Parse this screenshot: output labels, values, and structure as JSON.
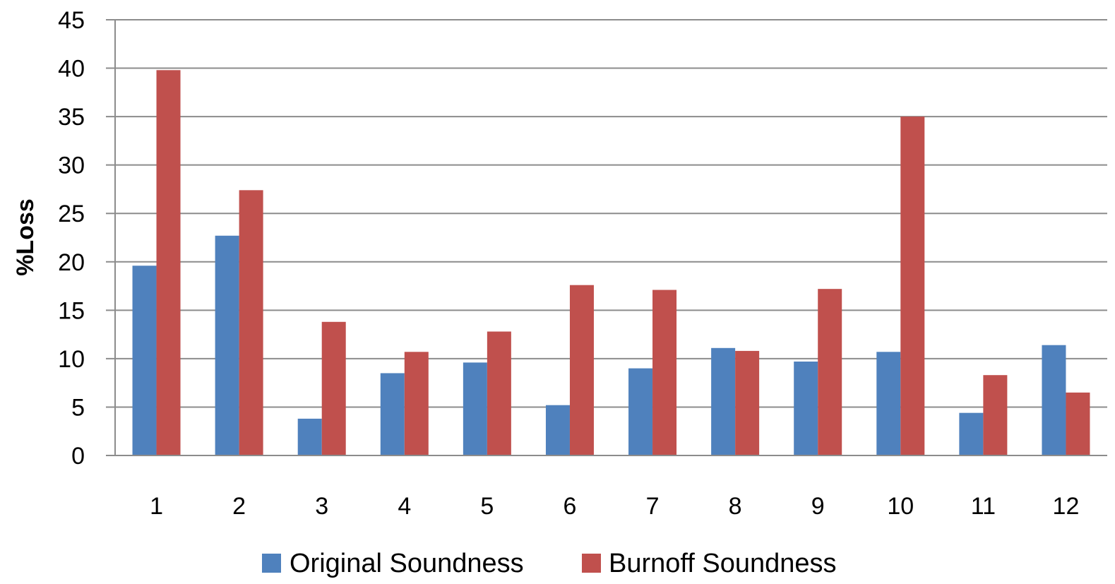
{
  "chart_data": {
    "type": "bar",
    "title": "",
    "xlabel": "",
    "ylabel": "%Loss",
    "ylim": [
      0,
      45
    ],
    "yticks": [
      0,
      5,
      10,
      15,
      20,
      25,
      30,
      35,
      40,
      45
    ],
    "grid": true,
    "legend_position": "bottom",
    "categories": [
      "1",
      "2",
      "3",
      "4",
      "5",
      "6",
      "7",
      "8",
      "9",
      "10",
      "11",
      "12"
    ],
    "series": [
      {
        "name": "Original Soundness",
        "color": "#4F81BD",
        "values": [
          19.6,
          22.7,
          3.8,
          8.5,
          9.6,
          5.2,
          9.0,
          11.1,
          9.7,
          10.7,
          4.4,
          11.4
        ]
      },
      {
        "name": "Burnoff Soundness",
        "color": "#C0504D",
        "values": [
          39.8,
          27.4,
          13.8,
          10.7,
          12.8,
          17.6,
          17.1,
          10.8,
          17.2,
          35.0,
          8.3,
          6.5
        ]
      }
    ]
  }
}
